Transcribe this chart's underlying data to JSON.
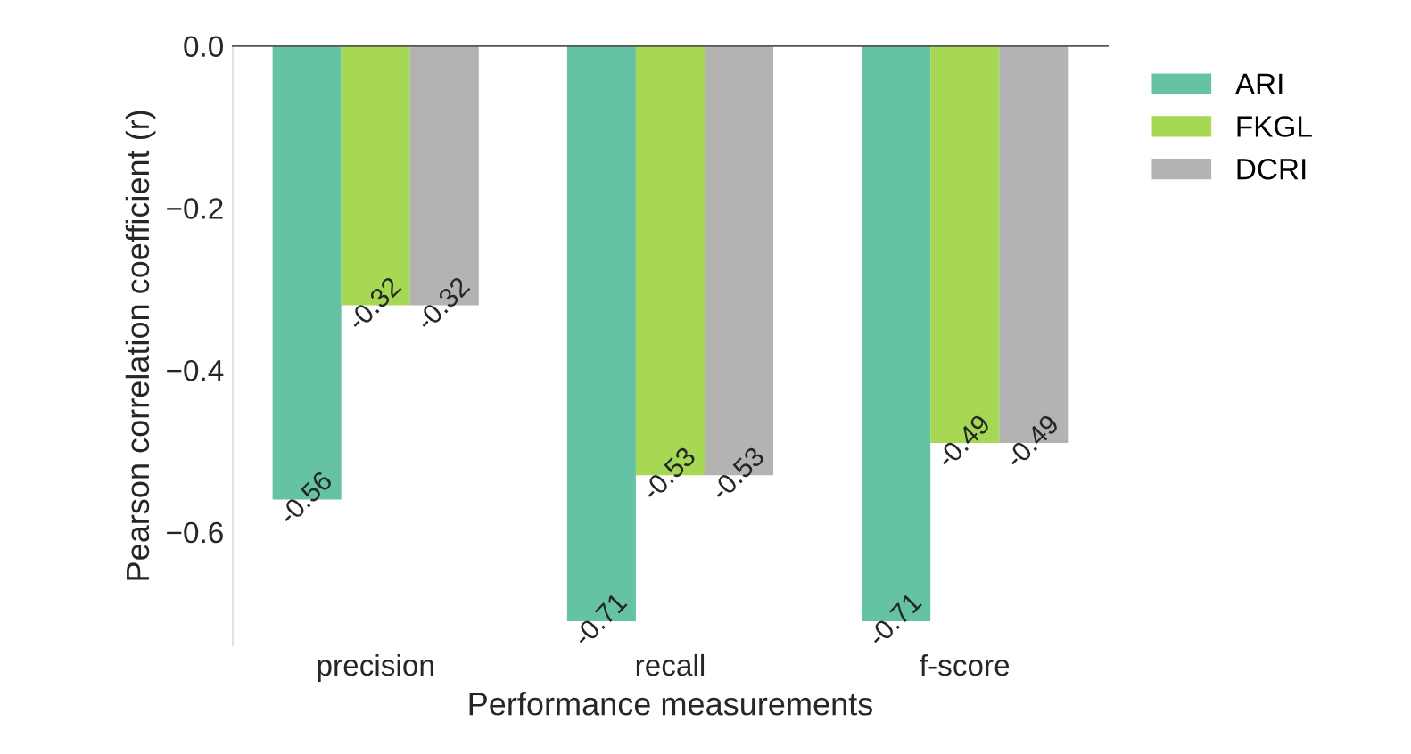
{
  "chart_data": {
    "type": "bar",
    "xlabel": "Performance measurements",
    "ylabel": "Pearson correlation coefficient (r)",
    "categories": [
      "precision",
      "recall",
      "f-score"
    ],
    "series": [
      {
        "name": "ARI",
        "color": "#66c2a5",
        "values": [
          -0.56,
          -0.71,
          -0.71
        ]
      },
      {
        "name": "FKGL",
        "color": "#a6d854",
        "values": [
          -0.32,
          -0.53,
          -0.49
        ]
      },
      {
        "name": "DCRI",
        "color": "#b3b3b3",
        "values": [
          -0.32,
          -0.53,
          -0.49
        ]
      }
    ],
    "ylim": [
      -0.74,
      0
    ],
    "yticks": [
      {
        "value": 0,
        "label": "0.0"
      },
      {
        "value": -0.2,
        "label": "−0.2"
      },
      {
        "value": -0.4,
        "label": "−0.4"
      },
      {
        "value": -0.6,
        "label": "−0.6"
      }
    ],
    "data_labels": true,
    "grid": false,
    "legend": "top right"
  }
}
